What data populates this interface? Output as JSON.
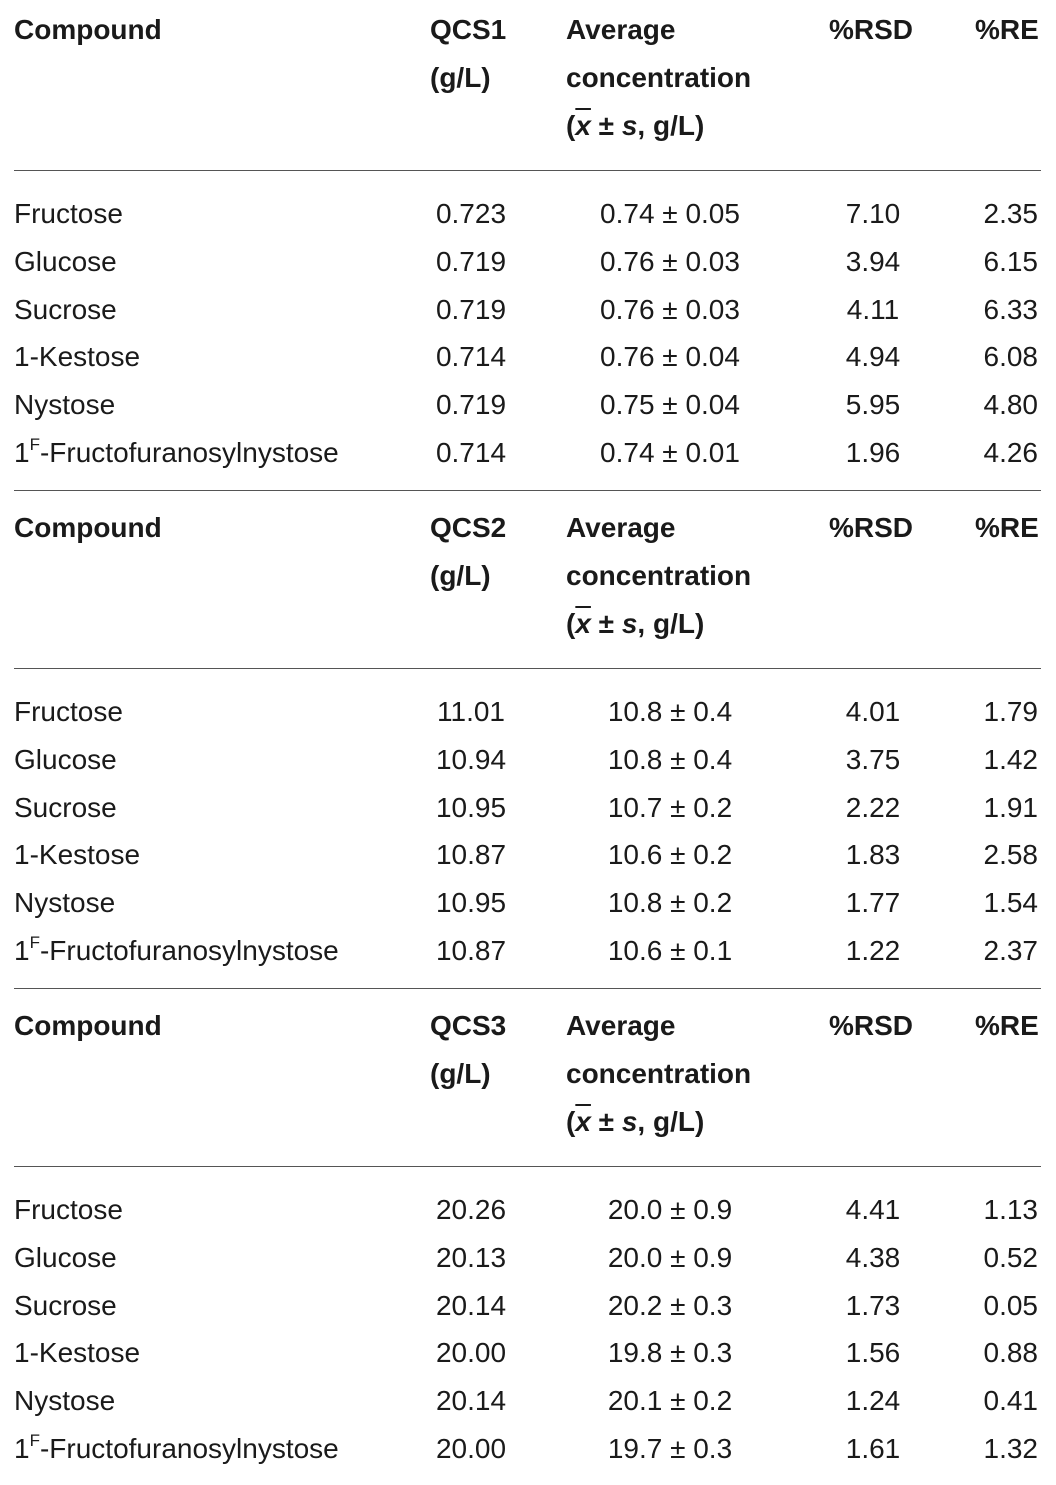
{
  "sections": [
    {
      "header": {
        "compound": "Compound",
        "qcs_line1": "QCS1",
        "qcs_line2": "(g/L)",
        "avg_line1": "Average",
        "avg_line2": "concentration",
        "avg_line3_open": "(",
        "avg_line3_x": "x",
        "avg_line3_pm": " ± ",
        "avg_line3_s": "s",
        "avg_line3_close": ",  g/L)",
        "rsd": "%RSD",
        "re": "%RE"
      },
      "rows": [
        {
          "base": "Fructose",
          "sup": "",
          "rest": "",
          "qcs": "0.723",
          "avg": "0.74 ± 0.05",
          "rsd": "7.10",
          "re": "2.35"
        },
        {
          "base": "Glucose",
          "sup": "",
          "rest": "",
          "qcs": "0.719",
          "avg": "0.76 ± 0.03",
          "rsd": "3.94",
          "re": "6.15"
        },
        {
          "base": "Sucrose",
          "sup": "",
          "rest": "",
          "qcs": "0.719",
          "avg": "0.76 ± 0.03",
          "rsd": "4.11",
          "re": "6.33"
        },
        {
          "base": "1-Kestose",
          "sup": "",
          "rest": "",
          "qcs": "0.714",
          "avg": "0.76 ± 0.04",
          "rsd": "4.94",
          "re": "6.08"
        },
        {
          "base": "Nystose",
          "sup": "",
          "rest": "",
          "qcs": "0.719",
          "avg": "0.75 ± 0.04",
          "rsd": "5.95",
          "re": "4.80"
        },
        {
          "base": "1",
          "sup": "F",
          "rest": "-Fructofuranosylnystose",
          "qcs": "0.714",
          "avg": "0.74 ± 0.01",
          "rsd": "1.96",
          "re": "4.26"
        }
      ]
    },
    {
      "header": {
        "compound": "Compound",
        "qcs_line1": "QCS2",
        "qcs_line2": "(g/L)",
        "avg_line1": "Average",
        "avg_line2": "concentration",
        "avg_line3_open": "(",
        "avg_line3_x": "x",
        "avg_line3_pm": " ± ",
        "avg_line3_s": "s",
        "avg_line3_close": ",  g/L)",
        "rsd": "%RSD",
        "re": "%RE"
      },
      "rows": [
        {
          "base": "Fructose",
          "sup": "",
          "rest": "",
          "qcs": "11.01",
          "avg": "10.8 ± 0.4",
          "rsd": "4.01",
          "re": "1.79"
        },
        {
          "base": "Glucose",
          "sup": "",
          "rest": "",
          "qcs": "10.94",
          "avg": "10.8 ± 0.4",
          "rsd": "3.75",
          "re": "1.42"
        },
        {
          "base": "Sucrose",
          "sup": "",
          "rest": "",
          "qcs": "10.95",
          "avg": "10.7 ± 0.2",
          "rsd": "2.22",
          "re": "1.91"
        },
        {
          "base": "1-Kestose",
          "sup": "",
          "rest": "",
          "qcs": "10.87",
          "avg": "10.6 ± 0.2",
          "rsd": "1.83",
          "re": "2.58"
        },
        {
          "base": "Nystose",
          "sup": "",
          "rest": "",
          "qcs": "10.95",
          "avg": "10.8 ± 0.2",
          "rsd": "1.77",
          "re": "1.54"
        },
        {
          "base": "1",
          "sup": "F",
          "rest": "-Fructofuranosylnystose",
          "qcs": "10.87",
          "avg": "10.6 ± 0.1",
          "rsd": "1.22",
          "re": "2.37"
        }
      ]
    },
    {
      "header": {
        "compound": "Compound",
        "qcs_line1": "QCS3",
        "qcs_line2": "(g/L)",
        "avg_line1": "Average",
        "avg_line2": "concentration",
        "avg_line3_open": "(",
        "avg_line3_x": "x",
        "avg_line3_pm": " ± ",
        "avg_line3_s": "s",
        "avg_line3_close": ",  g/L)",
        "rsd": "%RSD",
        "re": "%RE"
      },
      "rows": [
        {
          "base": "Fructose",
          "sup": "",
          "rest": "",
          "qcs": "20.26",
          "avg": "20.0 ± 0.9",
          "rsd": "4.41",
          "re": "1.13"
        },
        {
          "base": "Glucose",
          "sup": "",
          "rest": "",
          "qcs": "20.13",
          "avg": "20.0 ± 0.9",
          "rsd": "4.38",
          "re": "0.52"
        },
        {
          "base": "Sucrose",
          "sup": "",
          "rest": "",
          "qcs": "20.14",
          "avg": "20.2 ± 0.3",
          "rsd": "1.73",
          "re": "0.05"
        },
        {
          "base": "1-Kestose",
          "sup": "",
          "rest": "",
          "qcs": "20.00",
          "avg": "19.8 ± 0.3",
          "rsd": "1.56",
          "re": "0.88"
        },
        {
          "base": "Nystose",
          "sup": "",
          "rest": "",
          "qcs": "20.14",
          "avg": "20.1 ± 0.2",
          "rsd": "1.24",
          "re": "0.41"
        },
        {
          "base": "1",
          "sup": "F",
          "rest": "-Fructofuranosylnystose",
          "qcs": "20.00",
          "avg": "19.7 ± 0.3",
          "rsd": "1.61",
          "re": "1.32"
        }
      ]
    }
  ]
}
